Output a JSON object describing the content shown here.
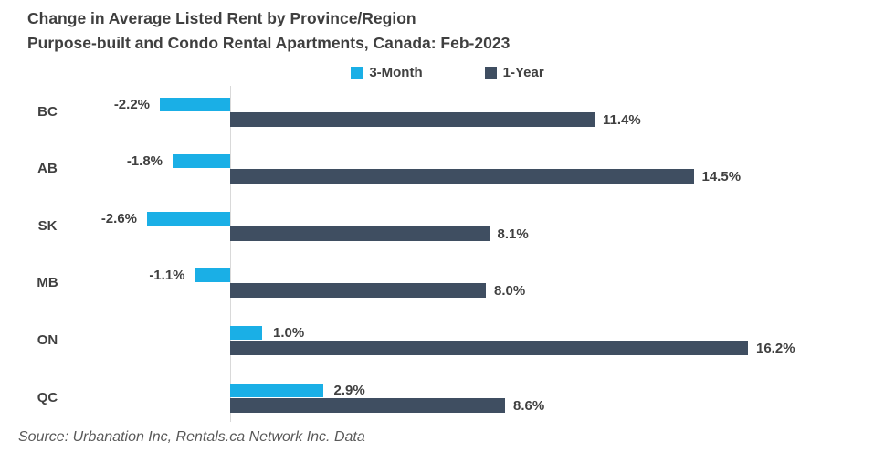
{
  "title": {
    "line1": "Change in Average Listed Rent by Province/Region",
    "line2": "Purpose-built and Condo Rental Apartments, Canada: Feb-2023"
  },
  "source": "Source: Urbanation Inc, Rentals.ca Network Inc. Data",
  "colors": {
    "three_month": "#1aafe6",
    "one_year": "#3f4e61",
    "text": "#404040",
    "axis_line": "#d9d9d9"
  },
  "chart_data": {
    "type": "bar",
    "orientation": "horizontal",
    "title": "Change in Average Listed Rent by Province/Region — Purpose-built and Condo Rental Apartments, Canada: Feb-2023",
    "categories": [
      "BC",
      "AB",
      "SK",
      "MB",
      "ON",
      "QC"
    ],
    "series": [
      {
        "name": "3-Month",
        "color": "#1aafe6",
        "values": [
          -2.2,
          -1.8,
          -2.6,
          -1.1,
          1.0,
          2.9
        ],
        "labels": [
          "-2.2%",
          "-1.8%",
          "-2.6%",
          "-1.1%",
          "1.0%",
          "2.9%"
        ]
      },
      {
        "name": "1-Year",
        "color": "#3f4e61",
        "values": [
          11.4,
          14.5,
          8.1,
          8.0,
          16.2,
          8.6
        ],
        "labels": [
          "11.4%",
          "14.5%",
          "8.1%",
          "8.0%",
          "16.2%",
          "8.6%"
        ]
      }
    ],
    "value_suffix": "%",
    "xlim": [
      -4,
      18
    ],
    "grid": false,
    "legend_position": "top-center",
    "xlabel": "",
    "ylabel": ""
  }
}
